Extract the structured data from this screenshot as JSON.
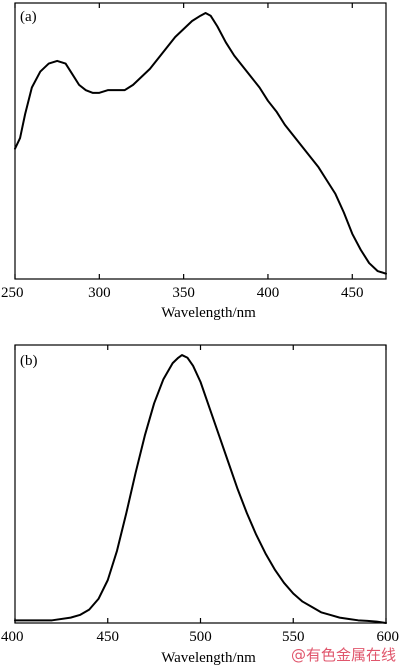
{
  "chart_data": [
    {
      "type": "line",
      "panel_label": "(a)",
      "title": "",
      "xlabel": "Wavelength/nm",
      "ylabel": "",
      "xlim": [
        250,
        470
      ],
      "ylim": [
        0,
        1
      ],
      "xticks": [
        250,
        300,
        350,
        400,
        450
      ],
      "yticks": [],
      "grid": false,
      "series": [
        {
          "x": [
            250,
            253,
            256,
            260,
            265,
            270,
            275,
            280,
            284,
            288,
            292,
            296,
            300,
            305,
            310,
            315,
            320,
            325,
            330,
            335,
            340,
            345,
            350,
            355,
            360,
            363,
            366,
            370,
            375,
            380,
            385,
            390,
            395,
            400,
            405,
            410,
            415,
            420,
            425,
            430,
            435,
            440,
            445,
            450,
            455,
            460,
            465,
            470
          ],
          "y": [
            0.49,
            0.53,
            0.62,
            0.72,
            0.78,
            0.81,
            0.82,
            0.81,
            0.77,
            0.73,
            0.71,
            0.7,
            0.7,
            0.71,
            0.71,
            0.71,
            0.73,
            0.76,
            0.79,
            0.83,
            0.87,
            0.91,
            0.94,
            0.97,
            0.99,
            1.0,
            0.99,
            0.95,
            0.89,
            0.84,
            0.8,
            0.76,
            0.72,
            0.67,
            0.63,
            0.58,
            0.54,
            0.5,
            0.46,
            0.42,
            0.37,
            0.32,
            0.25,
            0.17,
            0.11,
            0.06,
            0.03,
            0.02
          ]
        }
      ]
    },
    {
      "type": "line",
      "panel_label": "(b)",
      "title": "",
      "xlabel": "Wavelength/nm",
      "ylabel": "",
      "xlim": [
        400,
        600
      ],
      "ylim": [
        0,
        1
      ],
      "xticks": [
        400,
        450,
        500,
        550,
        600
      ],
      "yticks": [],
      "grid": false,
      "series": [
        {
          "x": [
            400,
            410,
            420,
            430,
            435,
            440,
            445,
            450,
            455,
            460,
            465,
            470,
            475,
            480,
            485,
            488,
            490,
            493,
            496,
            500,
            505,
            510,
            515,
            520,
            525,
            530,
            535,
            540,
            545,
            550,
            555,
            560,
            565,
            570,
            575,
            580,
            585,
            590,
            595,
            600
          ],
          "y": [
            0.01,
            0.01,
            0.01,
            0.02,
            0.03,
            0.05,
            0.09,
            0.16,
            0.27,
            0.41,
            0.56,
            0.7,
            0.82,
            0.91,
            0.97,
            0.99,
            1.0,
            0.99,
            0.96,
            0.9,
            0.8,
            0.7,
            0.6,
            0.5,
            0.41,
            0.33,
            0.26,
            0.2,
            0.15,
            0.11,
            0.08,
            0.06,
            0.04,
            0.03,
            0.02,
            0.015,
            0.01,
            0.008,
            0.005,
            0.0
          ]
        }
      ]
    }
  ],
  "watermark": "@有色金属在线"
}
